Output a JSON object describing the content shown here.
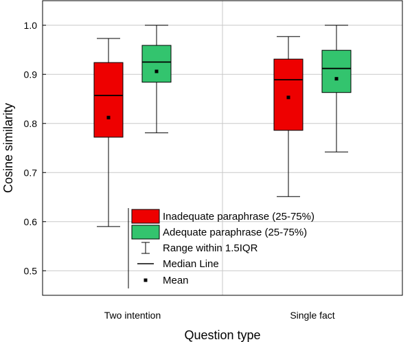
{
  "chart_data": {
    "type": "box",
    "title": "",
    "xlabel": "Question type",
    "ylabel": "Cosine similarity",
    "ylim": [
      0.45,
      1.05
    ],
    "yticks": [
      0.5,
      0.6,
      0.7,
      0.8,
      0.9,
      1.0
    ],
    "ytick_labels": [
      "0.5",
      "0.6",
      "0.7",
      "0.8",
      "0.9",
      "1.0"
    ],
    "grid": true,
    "legend_position": "bottom-center",
    "categories": [
      "Two intention",
      "Single fact"
    ],
    "series": [
      {
        "name": "Inadequate paraphrase (25-75%)",
        "color": "#ee0000",
        "boxes": [
          {
            "whisker_low": 0.59,
            "q1": 0.772,
            "median": 0.857,
            "q3": 0.924,
            "whisker_high": 0.973,
            "mean": 0.812
          },
          {
            "whisker_low": 0.651,
            "q1": 0.786,
            "median": 0.889,
            "q3": 0.931,
            "whisker_high": 0.977,
            "mean": 0.853
          }
        ]
      },
      {
        "name": "Adequate paraphrase (25-75%)",
        "color": "#33c46e",
        "boxes": [
          {
            "whisker_low": 0.781,
            "q1": 0.884,
            "median": 0.925,
            "q3": 0.959,
            "whisker_high": 1.0,
            "mean": 0.906
          },
          {
            "whisker_low": 0.742,
            "q1": 0.863,
            "median": 0.912,
            "q3": 0.949,
            "whisker_high": 1.0,
            "mean": 0.891
          }
        ]
      }
    ],
    "legend": [
      {
        "label": "Inadequate paraphrase (25-75%)",
        "symbol": "box",
        "color": "#ee0000"
      },
      {
        "label": "Adequate paraphrase (25-75%)",
        "symbol": "box",
        "color": "#33c46e"
      },
      {
        "label": "Range within 1.5IQR",
        "symbol": "whisker"
      },
      {
        "label": "Median Line",
        "symbol": "line"
      },
      {
        "label": "Mean",
        "symbol": "dot"
      }
    ]
  }
}
